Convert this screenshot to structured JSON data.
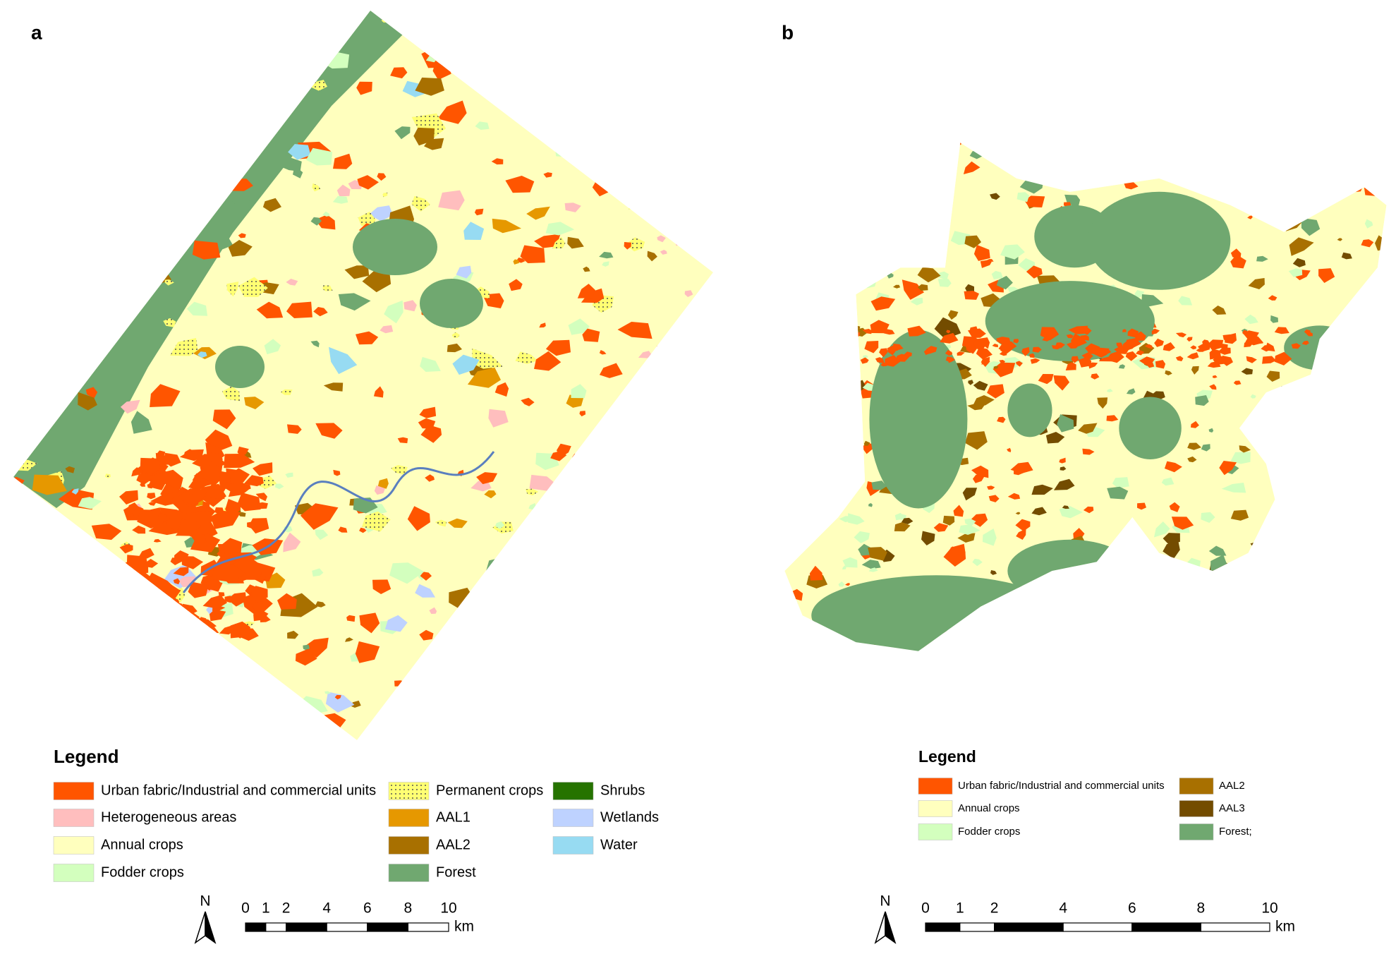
{
  "panels": [
    {
      "label": "a",
      "legend": {
        "title": "Legend",
        "items": [
          {
            "name": "Urban fabric/Industrial and commercial units",
            "color": "#ff5500"
          },
          {
            "name": "Heterogeneous areas",
            "color": "#ffbebe"
          },
          {
            "name": "Annual crops",
            "color": "#ffffbe"
          },
          {
            "name": "Fodder crops",
            "color": "#d3ffbe"
          },
          {
            "name": "Permanent crops",
            "color": "#ffff73",
            "pattern": "dots"
          },
          {
            "name": "AAL1",
            "color": "#e69800"
          },
          {
            "name": "AAL2",
            "color": "#a87000"
          },
          {
            "name": "Forest",
            "color": "#70a870"
          },
          {
            "name": "Shrubs",
            "color": "#267300"
          },
          {
            "name": "Wetlands",
            "color": "#bed2ff"
          },
          {
            "name": "Water",
            "color": "#97dbf2"
          }
        ]
      },
      "north": "N",
      "scale_bar": {
        "ticks": [
          0,
          1,
          2,
          4,
          6,
          8,
          10
        ],
        "unit": "km"
      }
    },
    {
      "label": "b",
      "legend": {
        "title": "Legend",
        "items": [
          {
            "name": "Urban fabric/Industrial and commercial units",
            "color": "#ff5500"
          },
          {
            "name": "Annual crops",
            "color": "#ffffbe"
          },
          {
            "name": "Fodder crops",
            "color": "#d3ffbe"
          },
          {
            "name": "AAL2",
            "color": "#a87000"
          },
          {
            "name": "AAL3",
            "color": "#734c00"
          },
          {
            "name": "Forest;",
            "color": "#70a870"
          }
        ]
      },
      "north": "N",
      "scale_bar": {
        "ticks": [
          0,
          1,
          2,
          4,
          6,
          8,
          10
        ],
        "unit": "km"
      }
    }
  ]
}
